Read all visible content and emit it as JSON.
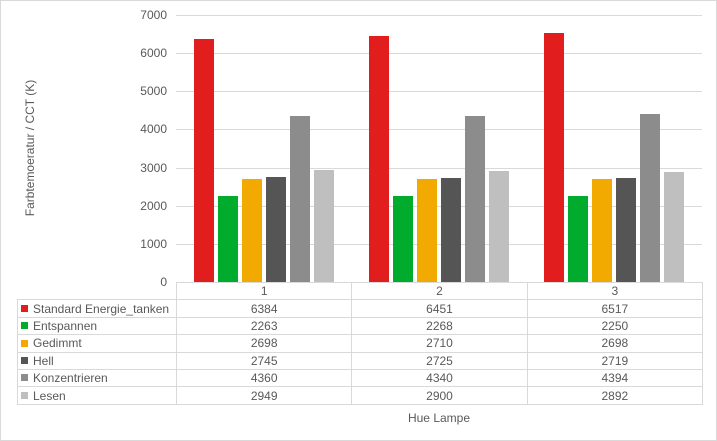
{
  "chart_data": {
    "type": "bar",
    "title": "",
    "xlabel": "Hue Lampe",
    "ylabel": "Farbtemoeratur / CCT (K)",
    "categories": [
      "1",
      "2",
      "3"
    ],
    "series": [
      {
        "name": "Standard Energie_tanken",
        "color": "#e21d1d",
        "values": [
          6384,
          6451,
          6517
        ]
      },
      {
        "name": "Entspannen",
        "color": "#00ab2e",
        "values": [
          2263,
          2268,
          2250
        ]
      },
      {
        "name": "Gedimmt",
        "color": "#f2a900",
        "values": [
          2698,
          2710,
          2698
        ]
      },
      {
        "name": "Hell",
        "color": "#555555",
        "values": [
          2745,
          2725,
          2719
        ]
      },
      {
        "name": "Konzentrieren",
        "color": "#8c8c8c",
        "values": [
          4360,
          4340,
          4394
        ]
      },
      {
        "name": "Lesen",
        "color": "#bfbfbf",
        "values": [
          2949,
          2900,
          2892
        ]
      }
    ],
    "ylim": [
      0,
      7000
    ],
    "ytick_step": 1000,
    "yticks": [
      "7000",
      "6000",
      "5000",
      "4000",
      "3000",
      "2000",
      "1000",
      "0"
    ],
    "grid": true,
    "legend_position": "data-table-left",
    "data_table": true
  },
  "colors": {
    "grid": "#d9d9d9",
    "border": "#d9d9d9",
    "text": "#595959",
    "background": "#ffffff"
  }
}
